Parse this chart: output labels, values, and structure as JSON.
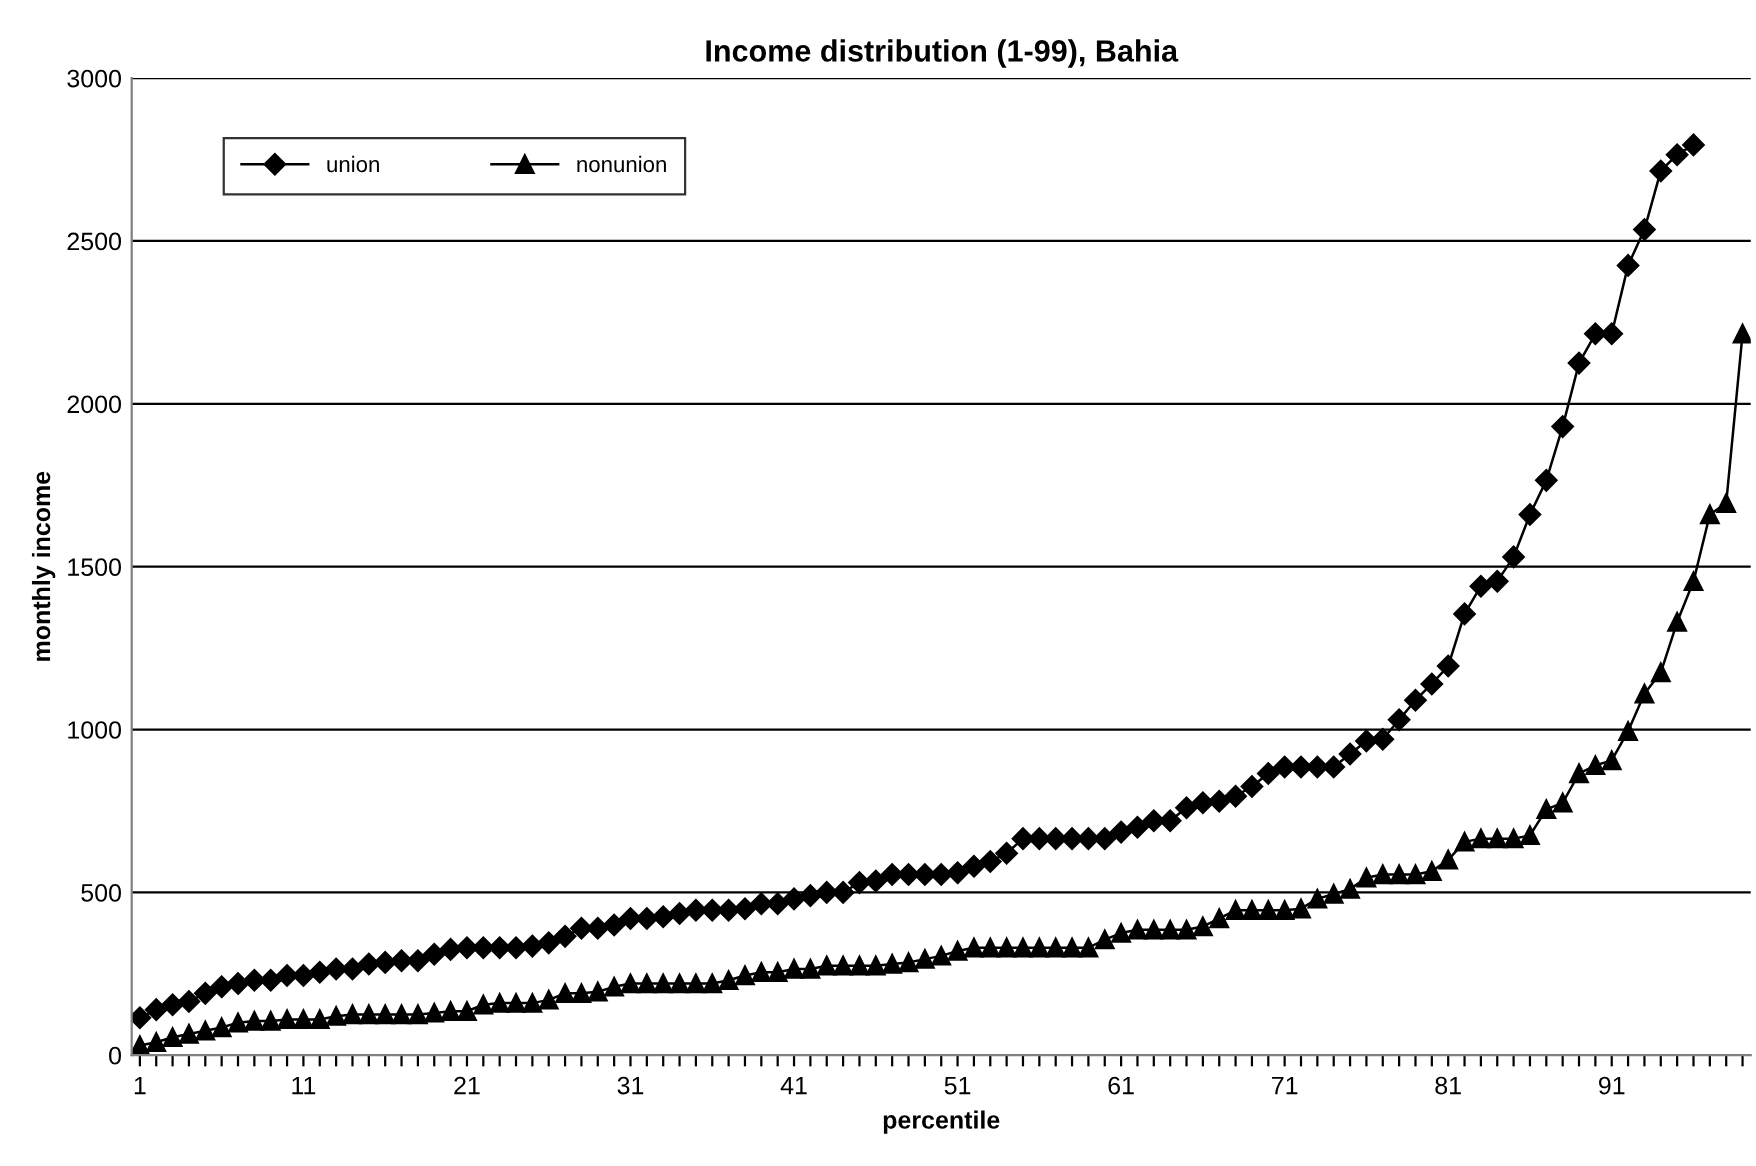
{
  "chart_data": {
    "type": "line",
    "title": "Income distribution (1-99), Bahia",
    "xlabel": "percentile",
    "ylabel": "monthly income",
    "categories": [
      "1",
      null,
      null,
      null,
      null,
      null,
      null,
      null,
      null,
      null,
      "11",
      null,
      null,
      null,
      null,
      null,
      null,
      null,
      null,
      null,
      "21",
      null,
      null,
      null,
      null,
      null,
      null,
      null,
      null,
      null,
      "31",
      null,
      null,
      null,
      null,
      null,
      null,
      null,
      null,
      null,
      "41",
      null,
      null,
      null,
      null,
      null,
      null,
      null,
      null,
      null,
      "51",
      null,
      null,
      null,
      null,
      null,
      null,
      null,
      null,
      null,
      "61",
      null,
      null,
      null,
      null,
      null,
      null,
      null,
      null,
      null,
      "71",
      null,
      null,
      null,
      null,
      null,
      null,
      null,
      null,
      null,
      "81",
      null,
      null,
      null,
      null,
      null,
      null,
      null,
      null,
      null,
      "91",
      null,
      null,
      null,
      null,
      null,
      null,
      null,
      null
    ],
    "series": [
      {
        "name": "union",
        "color": "#000000",
        "marker": "diamond",
        "values": [
          115,
          140,
          155,
          165,
          190,
          210,
          220,
          230,
          230,
          245,
          245,
          255,
          265,
          265,
          280,
          285,
          290,
          290,
          310,
          325,
          330,
          330,
          330,
          330,
          335,
          345,
          365,
          390,
          390,
          400,
          420,
          420,
          425,
          435,
          445,
          445,
          445,
          450,
          465,
          465,
          480,
          490,
          500,
          500,
          530,
          535,
          555,
          555,
          555,
          555,
          560,
          580,
          595,
          620,
          665,
          665,
          665,
          665,
          665,
          665,
          685,
          700,
          720,
          720,
          760,
          775,
          780,
          795,
          825,
          865,
          885,
          885,
          885,
          885,
          925,
          965,
          970,
          1030,
          1090,
          1140,
          1195,
          1355,
          1440,
          1455,
          1530,
          1660,
          1765,
          1930,
          2125,
          2215,
          2215,
          2425,
          2535,
          2715,
          2765,
          2795,
          null,
          null,
          null
        ]
      },
      {
        "name": "nonunion",
        "color": "#000000",
        "marker": "triangle",
        "values": [
          30,
          40,
          55,
          65,
          75,
          85,
          100,
          105,
          105,
          110,
          110,
          110,
          120,
          125,
          125,
          125,
          125,
          125,
          130,
          135,
          135,
          155,
          160,
          160,
          160,
          170,
          190,
          190,
          195,
          210,
          220,
          220,
          220,
          220,
          220,
          220,
          230,
          245,
          255,
          255,
          265,
          265,
          275,
          275,
          275,
          275,
          280,
          285,
          295,
          305,
          320,
          330,
          330,
          330,
          330,
          330,
          330,
          330,
          330,
          355,
          375,
          385,
          385,
          385,
          385,
          395,
          420,
          445,
          445,
          445,
          445,
          450,
          480,
          495,
          510,
          545,
          555,
          555,
          555,
          565,
          600,
          655,
          665,
          665,
          665,
          675,
          755,
          775,
          865,
          890,
          905,
          995,
          1110,
          1175,
          1330,
          1455,
          1660,
          1695,
          2215
        ]
      }
    ],
    "ylim": [
      0,
      3000
    ],
    "yticks": [
      0,
      500,
      1000,
      1500,
      2000,
      2500,
      3000
    ],
    "grid": "y",
    "legend": "top left",
    "line_style": "solid"
  }
}
